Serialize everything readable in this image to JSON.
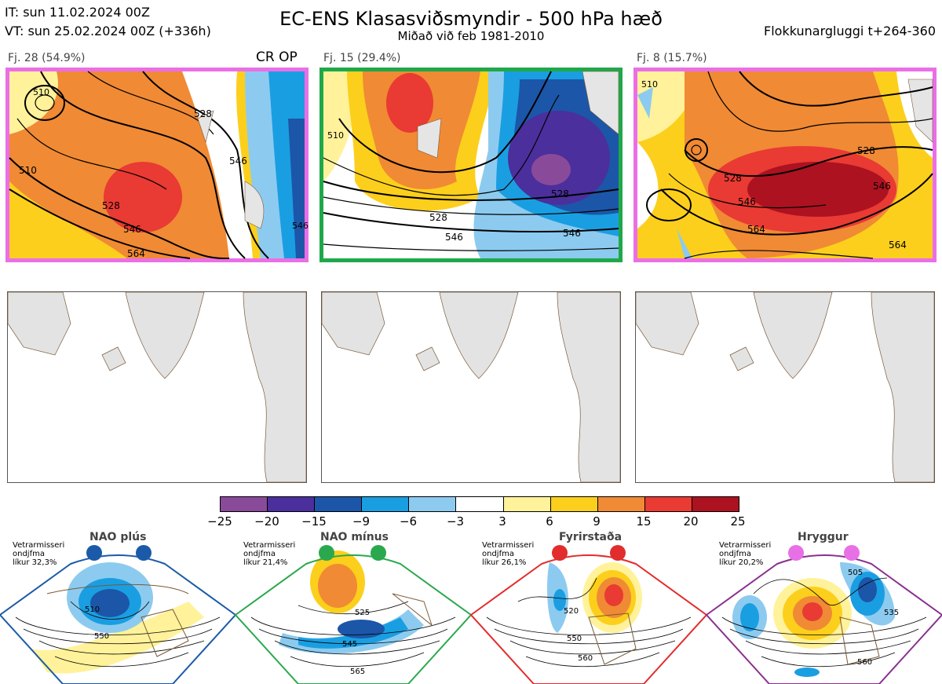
{
  "header": {
    "it_line": "IT: sun 11.02.2024 00Z",
    "vt_line": "VT: sun 25.02.2024 00Z  (+336h)",
    "title": "EC-ENS Klasasviðsmyndir - 500 hPa hæð",
    "subtitle": "Miðað við feb 1981-2010",
    "window": "Flokkunargluggi t+264-360"
  },
  "clusters": [
    {
      "label": "Fj. 28 (54.9%)",
      "tag": "CR OP",
      "border_color": "#ea6fe6",
      "contours": [
        "510",
        "528",
        "546",
        "564",
        "528",
        "546",
        "510",
        "546"
      ]
    },
    {
      "label": "Fj. 15 (29.4%)",
      "border_color": "#1fa84a",
      "contours": [
        "528",
        "546",
        "510",
        "528",
        "546"
      ]
    },
    {
      "label": "Fj. 8 (15.7%)",
      "border_color": "#ea6fe6",
      "contours": [
        "528",
        "546",
        "564",
        "564",
        "510",
        "528",
        "546"
      ]
    }
  ],
  "colorbar": {
    "colors": [
      "#8a4a9a",
      "#4b2f9c",
      "#1c56a8",
      "#1a9ee2",
      "#8ccbef",
      "#ffffff",
      "#fff29a",
      "#fccf1c",
      "#f08a34",
      "#e93a33",
      "#ad1220"
    ],
    "ticks": [
      "−25",
      "−20",
      "−15",
      "−9",
      "−6",
      "−3",
      "3",
      "6",
      "9",
      "15",
      "20",
      "25"
    ]
  },
  "regimes": [
    {
      "name": "NAO plús",
      "season": "Vetrarmisseri",
      "pattern": "ondjfma",
      "prob": "líkur 32,3%",
      "color": "#1a5aa8",
      "labels": [
        "510",
        "550"
      ]
    },
    {
      "name": "NAO mínus",
      "season": "Vetrarmisseri",
      "pattern": "ondjfma",
      "prob": "líkur 21,4%",
      "color": "#2aa84e",
      "labels": [
        "525",
        "545",
        "565"
      ]
    },
    {
      "name": "Fyrirstaða",
      "season": "Vetrarmisseri",
      "pattern": "ondjfma",
      "prob": "líkur 26,1%",
      "color": "#e22d2d",
      "labels": [
        "520",
        "550",
        "560"
      ]
    },
    {
      "name": "Hryggur",
      "season": "Vetrarmisseri",
      "pattern": "ondjfma",
      "prob": "líkur 20,2%",
      "color": "#e870e6",
      "labels": [
        "505",
        "535",
        "560"
      ]
    }
  ]
}
